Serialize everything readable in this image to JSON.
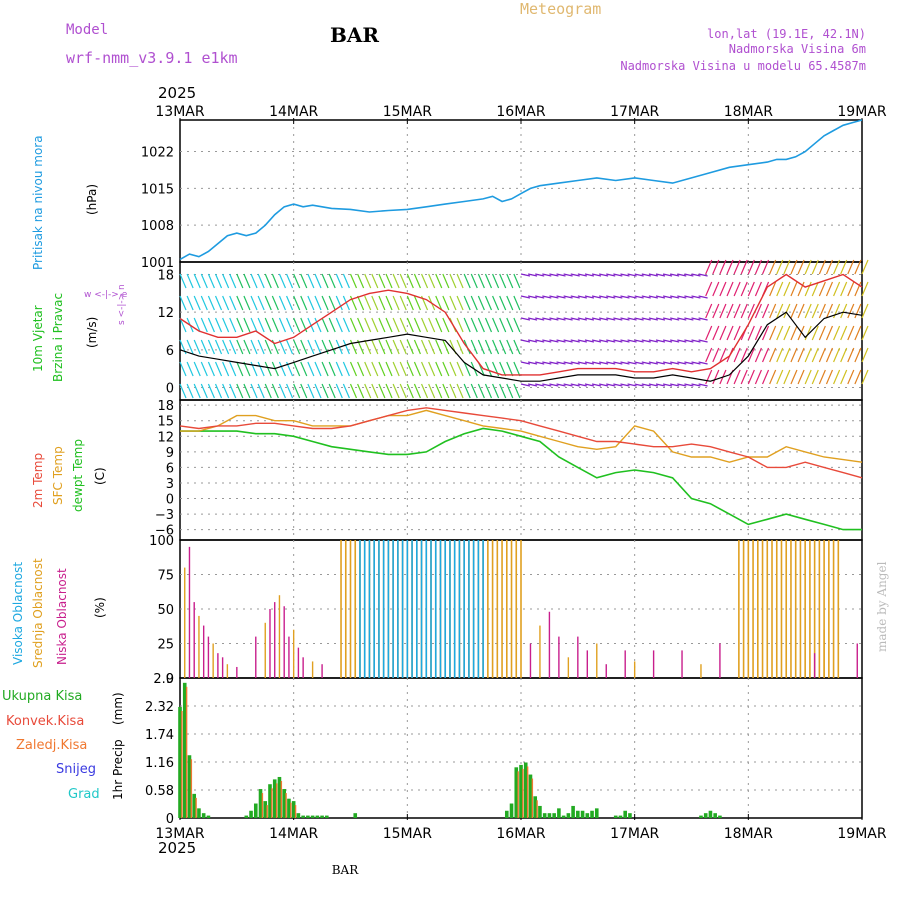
{
  "header": {
    "model_label": "Model",
    "model_name": "wrf-nmm_v3.9.1  e1km",
    "station": "BAR",
    "title": "Meteogram",
    "lonlat": "lon,lat (19.1E, 42.1N)",
    "elevation": "Nadmorska Visina 6m",
    "model_elevation": "Nadmorska Visina u modelu 65.4587m"
  },
  "footer": {
    "station": "BAR",
    "watermark": "made by Angel"
  },
  "colors": {
    "pressure": "#1e9be0",
    "wind_speed": "#000000",
    "wind_gust": "#e03030",
    "temp2m": "#e84a3a",
    "sfc_temp": "#e0a020",
    "dewpoint": "#20c020",
    "cloud_high": "#1ea8e0",
    "cloud_mid": "#e0a020",
    "cloud_low": "#c81e8c",
    "total_precip": "#22aa22",
    "conv_precip": "#e84a3a",
    "frz_precip": "#f07830",
    "snow": "#3a3ae0",
    "graupel": "#20c8c8",
    "gray_text": "#888888",
    "purple_text": "#b050d0"
  },
  "chart_data": [
    {
      "type": "line",
      "panel": "pressure",
      "ylabel": "Pritisak na nivou mora",
      "unit": "(hPa)",
      "yticks": [
        "1001",
        "1008",
        "1015",
        "1022"
      ],
      "ylim": [
        1001,
        1028
      ],
      "x_hours": [
        0,
        2,
        4,
        6,
        8,
        10,
        12,
        14,
        16,
        18,
        20,
        22,
        24,
        26,
        28,
        30,
        32,
        36,
        40,
        44,
        48,
        52,
        56,
        60,
        64,
        66,
        68,
        70,
        72,
        74,
        76,
        80,
        84,
        88,
        92,
        96,
        100,
        104,
        108,
        112,
        116,
        120,
        124,
        126,
        128,
        130,
        132,
        134,
        136,
        138,
        140,
        142,
        144
      ],
      "values": [
        1001.5,
        1002.5,
        1002,
        1003,
        1004.5,
        1006,
        1006.5,
        1006,
        1006.5,
        1008,
        1010,
        1011.5,
        1012,
        1011.5,
        1011.8,
        1011.5,
        1011.2,
        1011,
        1010.5,
        1010.8,
        1011,
        1011.5,
        1012,
        1012.5,
        1013,
        1013.5,
        1012.5,
        1013,
        1014,
        1015,
        1015.5,
        1016,
        1016.5,
        1017,
        1016.5,
        1017,
        1016.5,
        1016,
        1017,
        1018,
        1019,
        1019.5,
        1020,
        1020.5,
        1020.5,
        1021,
        1022,
        1023.5,
        1025,
        1026,
        1027,
        1027.5,
        1028
      ]
    },
    {
      "type": "line",
      "panel": "wind",
      "ylabel": "10m Vjetar Brzina i Pravac",
      "unit": "(m/s)",
      "yticks": [
        "0",
        "6",
        "12",
        "18"
      ],
      "ylim": [
        -2,
        20
      ],
      "compass": "w <-|-> e   s<-|->n",
      "x_hours": [
        0,
        4,
        8,
        12,
        16,
        20,
        24,
        28,
        32,
        36,
        40,
        44,
        48,
        52,
        56,
        60,
        64,
        68,
        72,
        76,
        80,
        84,
        88,
        92,
        96,
        100,
        104,
        108,
        112,
        116,
        120,
        124,
        128,
        132,
        136,
        140,
        144
      ],
      "series": [
        {
          "key": "speed",
          "values": [
            6,
            5,
            4.5,
            4,
            3.5,
            3,
            4,
            5,
            6,
            7,
            7.5,
            8,
            8.5,
            8,
            7.5,
            4,
            2,
            1.5,
            1,
            1,
            1.5,
            2,
            2,
            2,
            1.5,
            1.5,
            2,
            1.5,
            1,
            2,
            5,
            10,
            12,
            8,
            11,
            12,
            11.5
          ]
        },
        {
          "key": "gust",
          "values": [
            11,
            9,
            8,
            8,
            9,
            7,
            8,
            10,
            12,
            14,
            15,
            15.5,
            15,
            14,
            12,
            7,
            3,
            2,
            2,
            2,
            2.5,
            3,
            3,
            3,
            2.5,
            2.5,
            3,
            2.5,
            3,
            5,
            10,
            16,
            18,
            16,
            17,
            18,
            16
          ]
        }
      ]
    },
    {
      "type": "line",
      "panel": "temperature",
      "ylabel": "2m Temp / SFC Temp / dewpt Temp",
      "unit": "(C)",
      "yticks": [
        "18",
        "15",
        "12",
        "9",
        "6",
        "3",
        "0",
        "−3",
        "−6"
      ],
      "ylim": [
        -8,
        19
      ],
      "x_hours": [
        0,
        4,
        8,
        12,
        16,
        20,
        24,
        28,
        32,
        36,
        40,
        44,
        48,
        52,
        56,
        60,
        64,
        68,
        72,
        76,
        80,
        84,
        88,
        92,
        96,
        100,
        104,
        108,
        112,
        116,
        120,
        124,
        128,
        132,
        136,
        140,
        144
      ],
      "series": [
        {
          "key": "temp2m",
          "values": [
            14,
            13.5,
            14,
            14,
            14.5,
            14.5,
            14,
            13.5,
            13.5,
            14,
            15,
            16,
            17,
            17.5,
            17,
            16.5,
            16,
            15.5,
            15,
            14,
            13,
            12,
            11,
            11,
            10.5,
            10,
            10,
            10.5,
            10,
            9,
            8,
            6,
            6,
            7,
            6,
            5,
            4
          ]
        },
        {
          "key": "sfc_temp",
          "values": [
            13,
            13,
            14,
            16,
            16,
            15,
            15,
            14,
            14,
            14,
            15,
            16,
            16,
            17,
            16,
            15,
            14,
            13.5,
            13,
            12,
            11,
            10,
            9.5,
            10,
            14,
            13,
            9,
            8,
            8,
            7,
            8,
            8,
            10,
            9,
            8,
            7.5,
            7
          ]
        },
        {
          "key": "dewpoint",
          "values": [
            13,
            13,
            13,
            13,
            12.5,
            12.5,
            12,
            11,
            10,
            9.5,
            9,
            8.5,
            8.5,
            9,
            11,
            12.5,
            13.5,
            13,
            12,
            11,
            8,
            6,
            4,
            5,
            5.5,
            5,
            4,
            0,
            -1,
            -3,
            -5,
            -4,
            -3,
            -4,
            -5,
            -6,
            -6
          ]
        }
      ]
    },
    {
      "type": "bar",
      "panel": "cloud",
      "ylabel": "Visoka Oblacnost / Srednja Oblacnost / Niska Oblacnost",
      "unit": "(%)",
      "yticks": [
        "0",
        "25",
        "50",
        "75",
        "100"
      ],
      "ylim": [
        0,
        100
      ],
      "blocks": [
        {
          "key": "cloud_mid",
          "from_h": 34,
          "to_h": 72,
          "value": 100
        },
        {
          "key": "cloud_high",
          "from_h": 38,
          "to_h": 64,
          "value": 100
        },
        {
          "key": "cloud_mid",
          "from_h": 118,
          "to_h": 139,
          "value": 100
        }
      ],
      "spikes": {
        "x_hours": [
          1,
          2,
          3,
          4,
          5,
          6,
          7,
          8,
          9,
          10,
          12,
          16,
          18,
          19,
          20,
          21,
          22,
          23,
          24,
          25,
          26,
          28,
          30,
          74,
          76,
          78,
          80,
          82,
          84,
          86,
          88,
          90,
          94,
          96,
          100,
          106,
          110,
          114,
          134,
          136,
          143
        ],
        "values": [
          80,
          95,
          55,
          45,
          38,
          30,
          25,
          18,
          15,
          10,
          8,
          30,
          40,
          50,
          55,
          60,
          52,
          30,
          35,
          22,
          15,
          12,
          10,
          25,
          38,
          48,
          30,
          15,
          30,
          20,
          25,
          10,
          20,
          12,
          20,
          20,
          10,
          25,
          18,
          35,
          25
        ]
      }
    },
    {
      "type": "bar",
      "panel": "precip",
      "ylabel": "1hr Precip",
      "unit": "(mm)",
      "yticks": [
        "0",
        "0.58",
        "1.16",
        "1.74",
        "2.32",
        "2.9"
      ],
      "ylim": [
        0,
        2.9
      ],
      "x_hours": [
        0,
        1,
        2,
        3,
        4,
        5,
        6,
        14,
        15,
        16,
        17,
        18,
        19,
        20,
        21,
        22,
        23,
        24,
        25,
        26,
        27,
        28,
        29,
        30,
        31,
        37,
        69,
        70,
        71,
        72,
        73,
        74,
        75,
        76,
        77,
        78,
        79,
        80,
        81,
        82,
        83,
        84,
        85,
        86,
        87,
        88,
        92,
        93,
        94,
        95,
        110,
        111,
        112,
        113,
        114
      ],
      "values": [
        2.3,
        2.8,
        1.3,
        0.5,
        0.2,
        0.1,
        0.05,
        0.05,
        0.15,
        0.3,
        0.6,
        0.35,
        0.7,
        0.8,
        0.85,
        0.6,
        0.4,
        0.35,
        0.1,
        0.05,
        0.05,
        0.05,
        0.05,
        0.05,
        0.05,
        0.1,
        0.15,
        0.3,
        1.05,
        1.1,
        1.15,
        0.9,
        0.45,
        0.25,
        0.1,
        0.1,
        0.1,
        0.2,
        0.05,
        0.1,
        0.25,
        0.15,
        0.15,
        0.1,
        0.15,
        0.2,
        0.05,
        0.05,
        0.15,
        0.1,
        0.05,
        0.1,
        0.15,
        0.1,
        0.05
      ]
    }
  ],
  "panel_labels": {
    "pressure": {
      "line1": "Pritisak na nivou mora",
      "unit": "(hPa)"
    },
    "wind": {
      "line1": "10m Vjetar",
      "line2": "Brzina i Pravac",
      "unit": "(m/s)"
    },
    "temperature": {
      "line1": "2m Temp",
      "line2": "SFC Temp",
      "line3": "dewpt Temp",
      "unit": "(C)"
    },
    "cloud": {
      "line1": "Visoka Oblacnost",
      "line2": "Srednja Oblacnost",
      "line3": "Niska Oblacnost",
      "unit": "(%)"
    },
    "precip": {
      "line1": "1hr Precip",
      "unit": "(mm)"
    },
    "precip_legend": [
      "Ukupna Kisa",
      "Konvek.Kisa",
      "Zaledj.Kisa",
      "Snijeg",
      "Grad"
    ]
  },
  "time_axis": {
    "year": "2025",
    "ticks": [
      "13MAR",
      "14MAR",
      "15MAR",
      "16MAR",
      "17MAR",
      "18MAR",
      "19MAR"
    ],
    "hours": [
      0,
      24,
      48,
      72,
      96,
      120,
      144
    ]
  }
}
